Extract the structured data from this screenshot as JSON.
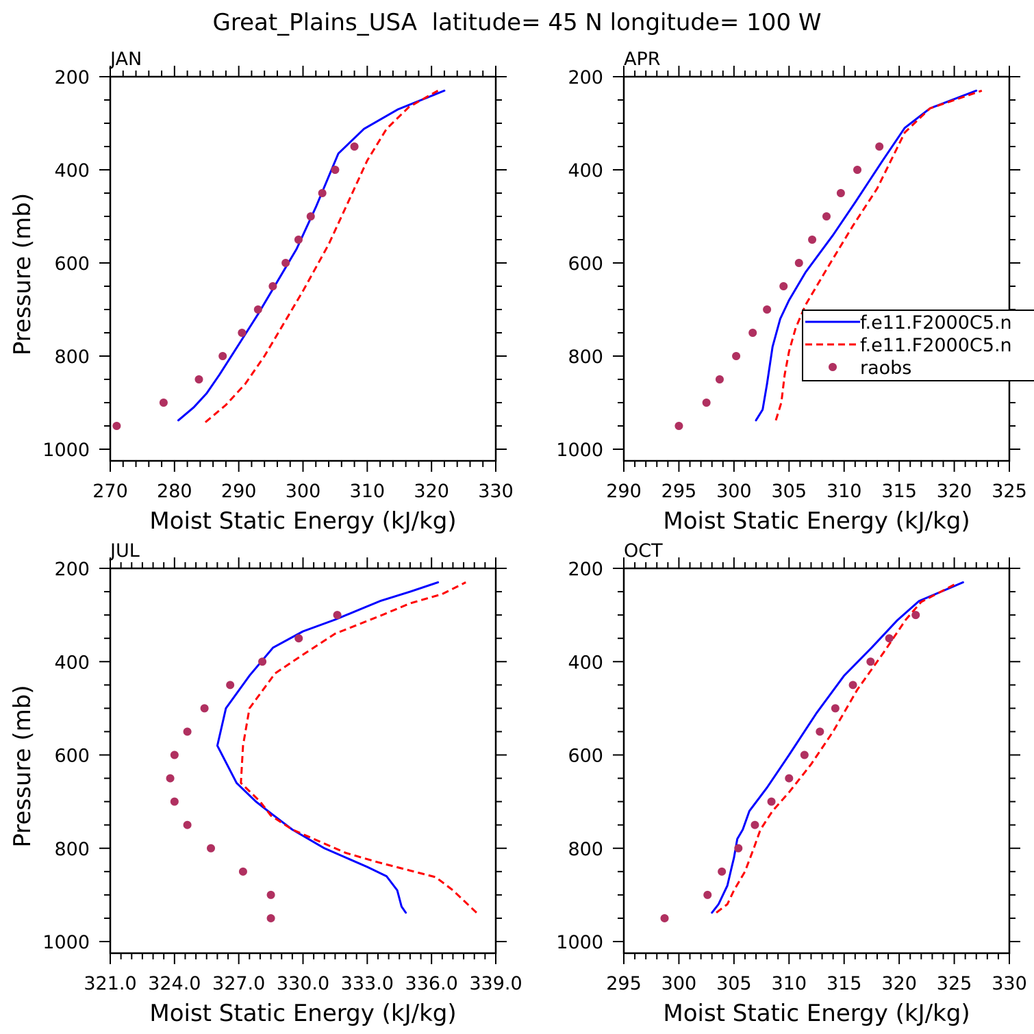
{
  "title": "Great_Plains_USA  latitude= 45 N longitude= 100 W",
  "colors": {
    "model1": "#0000ff",
    "model2": "#ff0000",
    "raobs": "#b03060",
    "axis": "#000000"
  },
  "legend": {
    "panel": 1,
    "entries": [
      {
        "label": "f.e11.F2000C5.n",
        "style": "solid",
        "color": "#0000ff"
      },
      {
        "label": "f.e11.F2000C5.n",
        "style": "dashed",
        "color": "#ff0000"
      },
      {
        "label": "raobs",
        "style": "dot",
        "color": "#b03060"
      }
    ]
  },
  "chart_data": [
    {
      "type": "line",
      "panel_label": "JAN",
      "xlabel": "Moist Static Energy (kJ/kg)",
      "ylabel": "Pressure (mb)",
      "xlim": [
        270,
        330
      ],
      "ylim": [
        1000,
        200
      ],
      "xticks": [
        270,
        280,
        290,
        300,
        310,
        320,
        330
      ],
      "xtick_labels": [
        "270",
        "280",
        "290",
        "300",
        "310",
        "320",
        "330"
      ],
      "yticks": [
        200,
        400,
        600,
        800,
        1000
      ],
      "ytick_labels": [
        "200",
        "400",
        "600",
        "800",
        "1000"
      ],
      "series": [
        {
          "style": "solid",
          "color": "#0000ff",
          "x": [
            280.6,
            283.0,
            285.0,
            287.0,
            290.0,
            293.0,
            296.0,
            299.0,
            302.0,
            305.5,
            309.5,
            314.8,
            322.0
          ],
          "y": [
            938,
            910,
            880,
            840,
            775,
            710,
            640,
            570,
            480,
            365,
            312,
            270,
            230
          ]
        },
        {
          "style": "dashed",
          "color": "#ff0000",
          "x": [
            284.8,
            288.0,
            291.0,
            294.0,
            297.0,
            300.0,
            304.0,
            307.0,
            310.0,
            313.0,
            316.5,
            321.0
          ],
          "y": [
            942,
            905,
            860,
            800,
            730,
            660,
            560,
            470,
            380,
            312,
            265,
            230
          ]
        },
        {
          "style": "dot",
          "color": "#b03060",
          "x": [
            271.0,
            278.3,
            283.8,
            287.5,
            290.5,
            293.0,
            295.3,
            297.3,
            299.3,
            301.2,
            303.0,
            305.0,
            308.0
          ],
          "y": [
            950,
            900,
            850,
            800,
            750,
            700,
            650,
            600,
            550,
            500,
            450,
            400,
            350
          ]
        }
      ]
    },
    {
      "type": "line",
      "panel_label": "APR",
      "xlabel": "Moist Static Energy (kJ/kg)",
      "ylabel": "",
      "xlim": [
        290,
        325
      ],
      "ylim": [
        1000,
        200
      ],
      "xticks": [
        290,
        295,
        300,
        305,
        310,
        315,
        320,
        325
      ],
      "xtick_labels": [
        "290",
        "295",
        "300",
        "305",
        "310",
        "315",
        "320",
        "325"
      ],
      "yticks": [
        200,
        400,
        600,
        800,
        1000
      ],
      "ytick_labels": [
        "200",
        "400",
        "600",
        "800",
        "1000"
      ],
      "series": [
        {
          "style": "solid",
          "color": "#0000ff",
          "x": [
            302.0,
            302.6,
            303.0,
            303.5,
            304.2,
            305.0,
            306.5,
            309.0,
            311.0,
            313.5,
            315.5,
            317.8,
            322.0
          ],
          "y": [
            938,
            915,
            860,
            780,
            720,
            680,
            620,
            540,
            470,
            380,
            310,
            268,
            230
          ]
        },
        {
          "style": "dashed",
          "color": "#ff0000",
          "x": [
            303.8,
            304.3,
            304.6,
            305.0,
            305.6,
            306.5,
            308.5,
            310.8,
            313.0,
            315.5,
            317.8,
            322.5
          ],
          "y": [
            938,
            900,
            840,
            790,
            740,
            690,
            610,
            520,
            440,
            320,
            268,
            230
          ]
        },
        {
          "style": "dot",
          "color": "#b03060",
          "x": [
            295.0,
            297.5,
            298.7,
            300.2,
            301.7,
            303.0,
            304.5,
            305.9,
            307.1,
            308.4,
            309.7,
            311.2,
            313.2
          ],
          "y": [
            950,
            900,
            850,
            800,
            750,
            700,
            650,
            600,
            550,
            500,
            450,
            400,
            350
          ]
        }
      ]
    },
    {
      "type": "line",
      "panel_label": "JUL",
      "xlabel": "Moist Static Energy (kJ/kg)",
      "ylabel": "Pressure (mb)",
      "xlim": [
        321.0,
        339.0
      ],
      "ylim": [
        1000,
        200
      ],
      "xticks": [
        321,
        324,
        327,
        330,
        333,
        336,
        339
      ],
      "xtick_labels": [
        "321.0",
        "324.0",
        "327.0",
        "330.0",
        "333.0",
        "336.0",
        "339.0"
      ],
      "yticks": [
        200,
        400,
        600,
        800,
        1000
      ],
      "ytick_labels": [
        "200",
        "400",
        "600",
        "800",
        "1000"
      ],
      "series": [
        {
          "style": "solid",
          "color": "#0000ff",
          "x": [
            334.8,
            334.6,
            334.4,
            333.9,
            333.0,
            331.0,
            329.5,
            328.5,
            327.8,
            326.9,
            326.0,
            326.4,
            327.5,
            328.6,
            330.0,
            331.5,
            333.6,
            335.0,
            336.3
          ],
          "y": [
            938,
            925,
            890,
            860,
            840,
            800,
            760,
            725,
            700,
            660,
            580,
            500,
            430,
            370,
            335,
            310,
            270,
            250,
            230
          ]
        },
        {
          "style": "dashed",
          "color": "#ff0000",
          "x": [
            338.1,
            337.0,
            336.2,
            333.5,
            332.0,
            330.5,
            329.5,
            328.5,
            328.0,
            327.1,
            327.2,
            327.5,
            328.7,
            330.0,
            331.5,
            333.7,
            335.0,
            336.5,
            337.6
          ],
          "y": [
            938,
            890,
            862,
            830,
            810,
            780,
            760,
            730,
            700,
            660,
            580,
            500,
            425,
            385,
            340,
            300,
            275,
            255,
            230
          ]
        },
        {
          "style": "dot",
          "color": "#b03060",
          "x": [
            328.5,
            328.5,
            327.2,
            325.7,
            324.6,
            324.0,
            323.8,
            324.0,
            324.6,
            325.4,
            326.6,
            328.1,
            329.8,
            331.6
          ],
          "y": [
            950,
            900,
            850,
            800,
            750,
            700,
            650,
            600,
            550,
            500,
            450,
            400,
            350,
            300
          ]
        }
      ]
    },
    {
      "type": "line",
      "panel_label": "OCT",
      "xlabel": "Moist Static Energy (kJ/kg)",
      "ylabel": "",
      "xlim": [
        295,
        330
      ],
      "ylim": [
        1000,
        200
      ],
      "xticks": [
        295,
        300,
        305,
        310,
        315,
        320,
        325,
        330
      ],
      "xtick_labels": [
        "295",
        "300",
        "305",
        "310",
        "315",
        "320",
        "325",
        "330"
      ],
      "yticks": [
        200,
        400,
        600,
        800,
        1000
      ],
      "ytick_labels": [
        "200",
        "400",
        "600",
        "800",
        "1000"
      ],
      "series": [
        {
          "style": "solid",
          "color": "#0000ff",
          "x": [
            303.0,
            303.6,
            304.4,
            304.8,
            305.0,
            305.3,
            305.8,
            306.4,
            308.0,
            310.0,
            312.5,
            315.0,
            317.5,
            319.8,
            321.8,
            325.8
          ],
          "y": [
            938,
            920,
            880,
            840,
            820,
            780,
            760,
            720,
            670,
            600,
            510,
            430,
            370,
            312,
            270,
            230
          ]
        },
        {
          "style": "dashed",
          "color": "#ff0000",
          "x": [
            303.4,
            304.4,
            305.0,
            306.0,
            306.8,
            307.4,
            308.5,
            310.0,
            312.0,
            314.0,
            316.2,
            318.6,
            320.6,
            322.0,
            325.0
          ],
          "y": [
            938,
            920,
            890,
            850,
            800,
            760,
            720,
            680,
            620,
            550,
            460,
            380,
            310,
            272,
            235
          ]
        },
        {
          "style": "dot",
          "color": "#b03060",
          "x": [
            298.7,
            302.6,
            303.9,
            305.4,
            306.9,
            308.4,
            310.0,
            311.4,
            312.8,
            314.2,
            315.8,
            317.4,
            319.1,
            321.5
          ],
          "y": [
            950,
            900,
            850,
            800,
            750,
            700,
            650,
            600,
            550,
            500,
            450,
            400,
            350,
            300
          ]
        }
      ]
    }
  ]
}
